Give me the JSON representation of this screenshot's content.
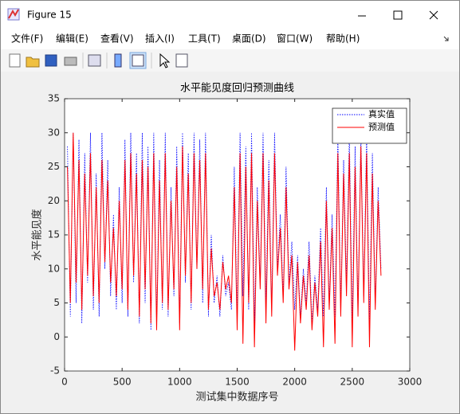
{
  "window": {
    "title": "Figure 15",
    "menu": [
      "文件(F)",
      "编辑(E)",
      "查看(V)",
      "插入(I)",
      "工具(T)",
      "桌面(D)",
      "窗口(W)",
      "帮助(H)"
    ]
  },
  "chart_data": {
    "type": "line",
    "title": "水平能见度回归预测曲线",
    "x_label": "测试集中数据序号",
    "y_label": "水平能见度",
    "x": [
      25,
      50,
      75,
      100,
      125,
      150,
      175,
      200,
      225,
      250,
      275,
      300,
      325,
      350,
      375,
      400,
      425,
      450,
      475,
      500,
      525,
      550,
      575,
      600,
      625,
      650,
      675,
      700,
      725,
      750,
      775,
      800,
      825,
      850,
      875,
      900,
      925,
      950,
      975,
      1000,
      1025,
      1050,
      1075,
      1100,
      1125,
      1150,
      1175,
      1200,
      1225,
      1250,
      1275,
      1300,
      1325,
      1350,
      1375,
      1400,
      1425,
      1450,
      1475,
      1500,
      1525,
      1550,
      1575,
      1600,
      1625,
      1650,
      1675,
      1700,
      1725,
      1750,
      1775,
      1800,
      1825,
      1850,
      1875,
      1900,
      1925,
      1950,
      1975,
      2000,
      2025,
      2050,
      2075,
      2100,
      2125,
      2150,
      2175,
      2200,
      2225,
      2250,
      2275,
      2300,
      2325,
      2350,
      2375,
      2400,
      2425,
      2450,
      2475,
      2500,
      2525,
      2550,
      2575,
      2600,
      2625,
      2650,
      2675,
      2700,
      2725,
      2750
    ],
    "series": [
      {
        "name": "真实值",
        "color": "#0000ff",
        "dash": "dotted",
        "values": [
          28,
          3,
          30,
          5,
          29,
          2,
          27,
          8,
          30,
          4,
          24,
          3,
          30,
          10,
          26,
          6,
          18,
          4,
          22,
          5,
          29,
          3,
          30,
          8,
          27,
          2,
          30,
          5,
          28,
          1,
          30,
          2,
          26,
          4,
          30,
          3,
          22,
          6,
          28,
          2,
          30,
          8,
          27,
          4,
          30,
          10,
          29,
          5,
          30,
          3,
          15,
          5,
          9,
          3,
          12,
          6,
          8,
          4,
          25,
          3,
          30,
          6,
          28,
          4,
          30,
          2,
          22,
          8,
          30,
          5,
          26,
          4,
          30,
          10,
          18,
          6,
          25,
          8,
          14,
          4,
          12,
          3,
          10,
          5,
          14,
          2,
          9,
          4,
          16,
          3,
          22,
          5,
          18,
          3,
          30,
          4,
          26,
          8,
          30,
          2,
          28,
          4,
          30,
          6,
          30,
          2,
          27,
          5,
          22,
          10
        ]
      },
      {
        "name": "预测值",
        "color": "#ff0000",
        "dash": "solid",
        "values": [
          25,
          5,
          30,
          8,
          26,
          4,
          24,
          9,
          27,
          6,
          22,
          5,
          26,
          11,
          23,
          8,
          16,
          6,
          20,
          7,
          26,
          4,
          27,
          9,
          24,
          3,
          26,
          7,
          25,
          2,
          27,
          1,
          23,
          5,
          27,
          4,
          20,
          7,
          25,
          1,
          28,
          9,
          24,
          5,
          27,
          10,
          26,
          7,
          27,
          4,
          13,
          6,
          8,
          4,
          11,
          7,
          9,
          5,
          22,
          1,
          27,
          -1,
          25,
          5,
          27,
          -1.5,
          20,
          7,
          27,
          2,
          23,
          3,
          27,
          9,
          16,
          5,
          22,
          7,
          12,
          -2,
          11,
          2,
          9,
          4,
          12,
          1,
          8,
          3,
          14,
          -1.5,
          20,
          4,
          16,
          -1,
          27,
          3,
          24,
          6,
          27,
          -1.5,
          25,
          3,
          28,
          5,
          27,
          -1.5,
          24,
          4,
          20,
          9
        ]
      }
    ],
    "xlim": [
      0,
      3000
    ],
    "xticks": [
      0,
      500,
      1000,
      1500,
      2000,
      2500,
      3000
    ],
    "ylim": [
      -5,
      35
    ],
    "yticks": [
      -5,
      0,
      5,
      10,
      15,
      20,
      25,
      30,
      35
    ],
    "grid": false,
    "legend": "northeast"
  }
}
